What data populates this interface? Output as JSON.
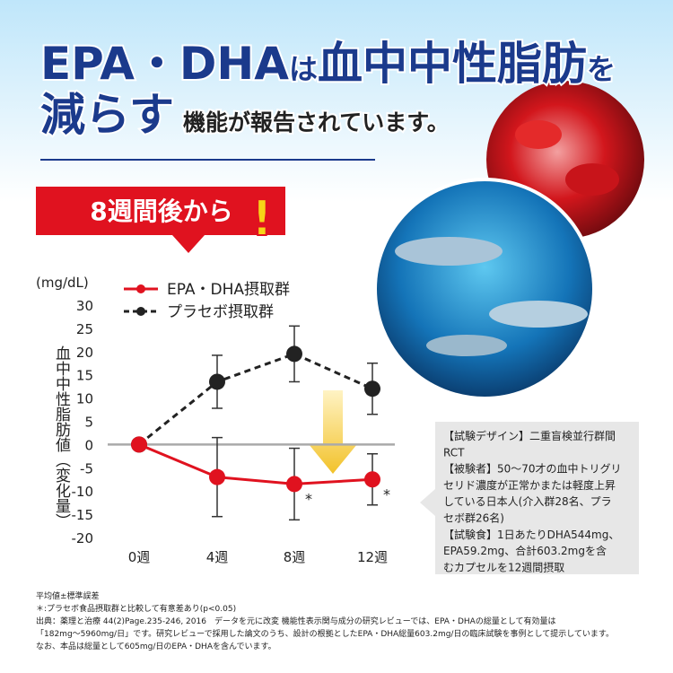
{
  "headline": {
    "part1": "EPA・DHA",
    "part2": "は",
    "part3": "血中中性脂肪",
    "part4": "を",
    "part5": "減らす",
    "part6": "機能が報告されています。"
  },
  "badge": {
    "text": "8週間後から",
    "mark": "!"
  },
  "chart_data": {
    "type": "line",
    "unit": "(mg/dL)",
    "y_label": "血中中性脂肪値（変化量）",
    "categories": [
      "0週",
      "4週",
      "8週",
      "12週"
    ],
    "series": [
      {
        "name": "EPA・DHA摂取群",
        "color": "#e0121f",
        "dashed": false,
        "values": [
          0,
          -7,
          -8.5,
          -7.5
        ],
        "errors": [
          0,
          8.5,
          7.7,
          5.5
        ]
      },
      {
        "name": "プラセボ摂取群",
        "color": "#222222",
        "dashed": true,
        "values": [
          0,
          13.5,
          19.5,
          12
        ],
        "errors": [
          0,
          5.7,
          6,
          5.5
        ]
      }
    ],
    "annotations": [
      {
        "x": "8週",
        "text": "*"
      },
      {
        "x": "12週",
        "text": "*"
      }
    ],
    "ylim": [
      -20,
      30
    ],
    "yticks": [
      -20,
      -15,
      -10,
      -5,
      0,
      5,
      10,
      15,
      20,
      25,
      30
    ]
  },
  "info_box": {
    "lines": [
      "【試験デザイン】二重盲検並行群間",
      "RCT",
      "【被験者】50〜70才の血中トリグリ",
      "セリド濃度が正常かまたは軽度上昇",
      "している日本人(介入群28名、プラ",
      "セボ群26名)",
      "【試験食】1日あたりDHA544mg、",
      "EPA59.2mg、合計603.2mgを含",
      "むカプセルを12週間摂取"
    ]
  },
  "footnotes": [
    "平均値±標準誤差",
    "＊:プラセボ食品摂取群と比較して有意差あり(p<0.05)",
    "出典：薬理と治療 44(2)Page.235-246, 2016　データを元に改変 機能性表示関与成分の研究レビューでは、EPA・DHAの総量として有効量は",
    "「182mg〜5960mg/日」です。研究レビューで採用した論文のうち、設計の根拠としたEPA・DHA総量603.2mg/日の臨床試験を事例として提示しています。",
    "なお、本品は総量として605mg/日のEPA・DHAを含んでいます。"
  ]
}
